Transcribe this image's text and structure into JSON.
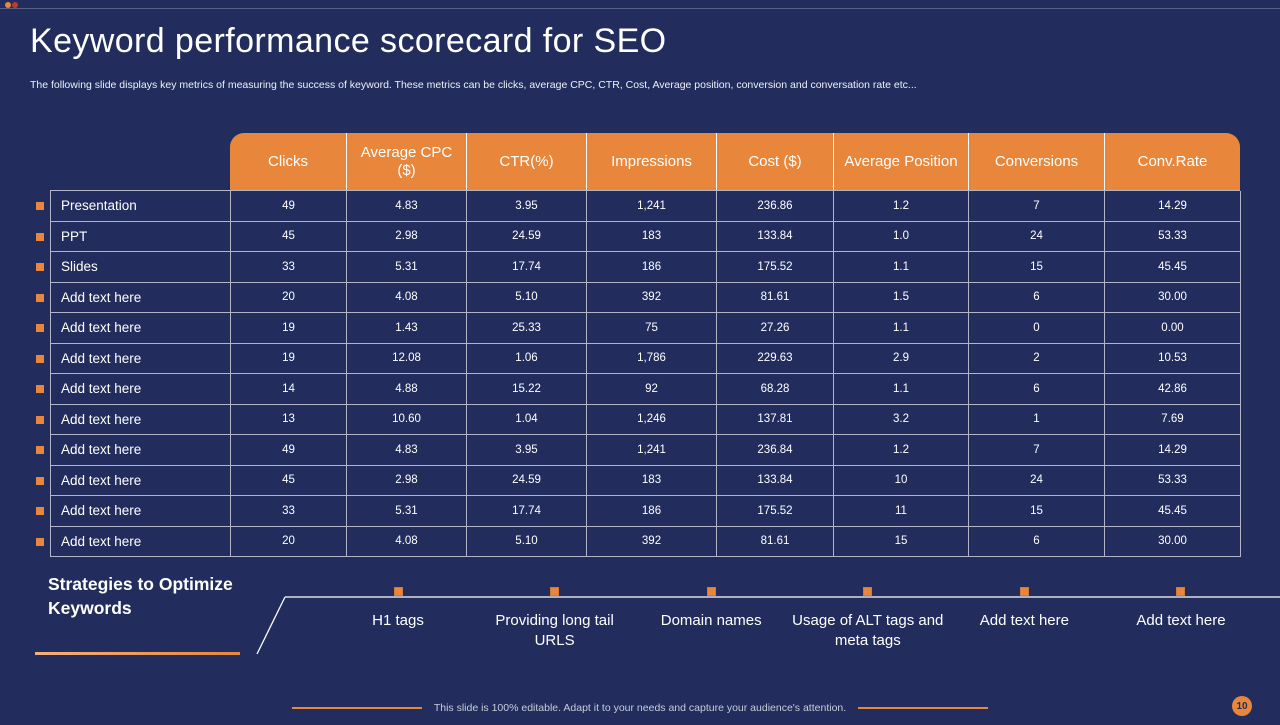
{
  "slide": {
    "title": "Keyword performance scorecard for SEO",
    "subtitle": "The following slide displays key metrics of measuring the success of keyword. These metrics can be clicks, average CPC,  CTR,  Cost, Average position, conversion and conversation rate etc...",
    "footer": "This slide is 100% editable.  Adapt it to your needs and capture your audience's attention.",
    "page_number": "10"
  },
  "table": {
    "columns": [
      "Clicks",
      "Average CPC ($)",
      "CTR(%)",
      "Impressions",
      "Cost ($)",
      "Average Position",
      "Conversions",
      "Conv.Rate"
    ],
    "rows": [
      {
        "label": "Presentation",
        "values": [
          "49",
          "4.83",
          "3.95",
          "1,241",
          "236.86",
          "1.2",
          "7",
          "14.29"
        ]
      },
      {
        "label": "PPT",
        "values": [
          "45",
          "2.98",
          "24.59",
          "183",
          "133.84",
          "1.0",
          "24",
          "53.33"
        ]
      },
      {
        "label": "Slides",
        "values": [
          "33",
          "5.31",
          "17.74",
          "186",
          "175.52",
          "1.1",
          "15",
          "45.45"
        ]
      },
      {
        "label": "Add text here",
        "values": [
          "20",
          "4.08",
          "5.10",
          "392",
          "81.61",
          "1.5",
          "6",
          "30.00"
        ]
      },
      {
        "label": "Add text here",
        "values": [
          "19",
          "1.43",
          "25.33",
          "75",
          "27.26",
          "1.1",
          "0",
          "0.00"
        ]
      },
      {
        "label": "Add text here",
        "values": [
          "19",
          "12.08",
          "1.06",
          "1,786",
          "229.63",
          "2.9",
          "2",
          "10.53"
        ]
      },
      {
        "label": "Add text here",
        "values": [
          "14",
          "4.88",
          "15.22",
          "92",
          "68.28",
          "1.1",
          "6",
          "42.86"
        ]
      },
      {
        "label": "Add text here",
        "values": [
          "13",
          "10.60",
          "1.04",
          "1,246",
          "137.81",
          "3.2",
          "1",
          "7.69"
        ]
      },
      {
        "label": "Add text here",
        "values": [
          "49",
          "4.83",
          "3.95",
          "1,241",
          "236.84",
          "1.2",
          "7",
          "14.29"
        ]
      },
      {
        "label": "Add text here",
        "values": [
          "45",
          "2.98",
          "24.59",
          "183",
          "133.84",
          "10",
          "24",
          "53.33"
        ]
      },
      {
        "label": "Add text here",
        "values": [
          "33",
          "5.31",
          "17.74",
          "186",
          "175.52",
          "11",
          "15",
          "45.45"
        ]
      },
      {
        "label": "Add text here",
        "values": [
          "20",
          "4.08",
          "5.10",
          "392",
          "81.61",
          "15",
          "6",
          "30.00"
        ]
      }
    ]
  },
  "strategies": {
    "heading": "Strategies to Optimize Keywords",
    "items": [
      "H1 tags",
      "Providing long tail URLS",
      "Domain names",
      "Usage of ALT tags and meta tags",
      "Add text here",
      "Add text here"
    ]
  },
  "colors": {
    "accent": "#E8873B",
    "background": "#222D5E"
  }
}
